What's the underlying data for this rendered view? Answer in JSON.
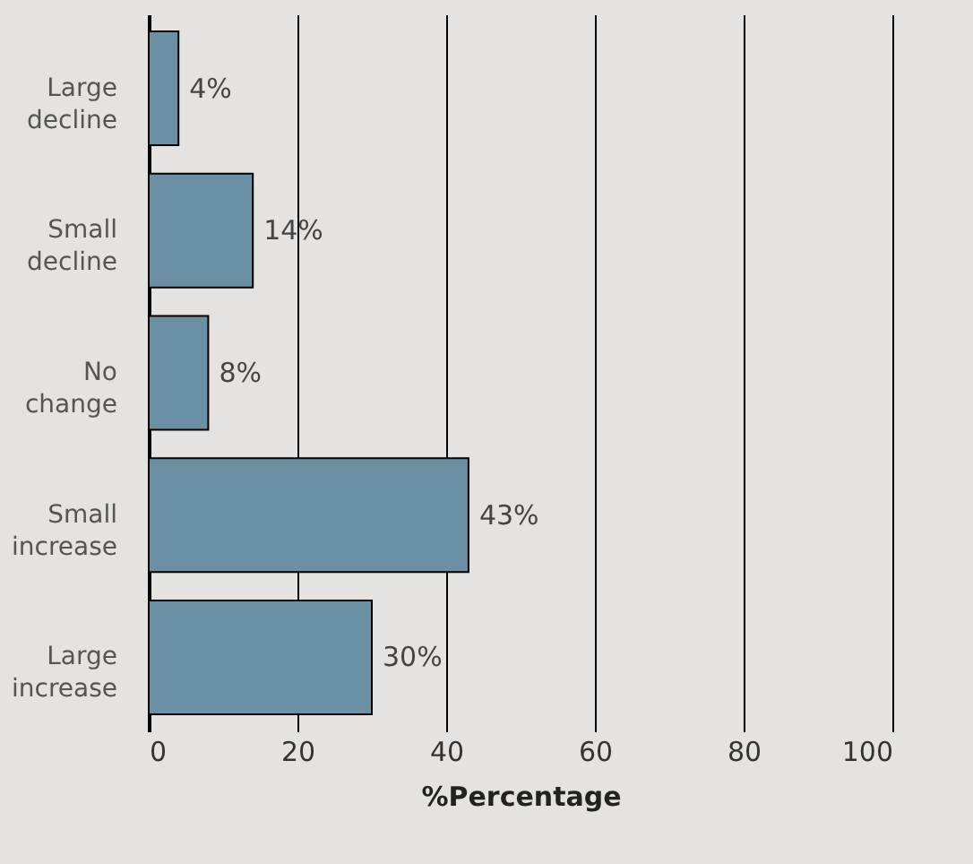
{
  "chart_data": {
    "type": "bar",
    "orientation": "horizontal",
    "xlabel": "%Percentage",
    "categories": [
      "Large decline",
      "Small decline",
      "No change",
      "Small increase",
      "Large increase"
    ],
    "values": [
      4,
      14,
      8,
      43,
      30
    ],
    "value_labels": [
      "4%",
      "14%",
      "8%",
      "43%",
      "30%"
    ],
    "color": "#6b8fa3",
    "xlim": [
      0,
      100
    ],
    "xticks": [
      0,
      20,
      40,
      60,
      80,
      100
    ],
    "grid": "x"
  }
}
